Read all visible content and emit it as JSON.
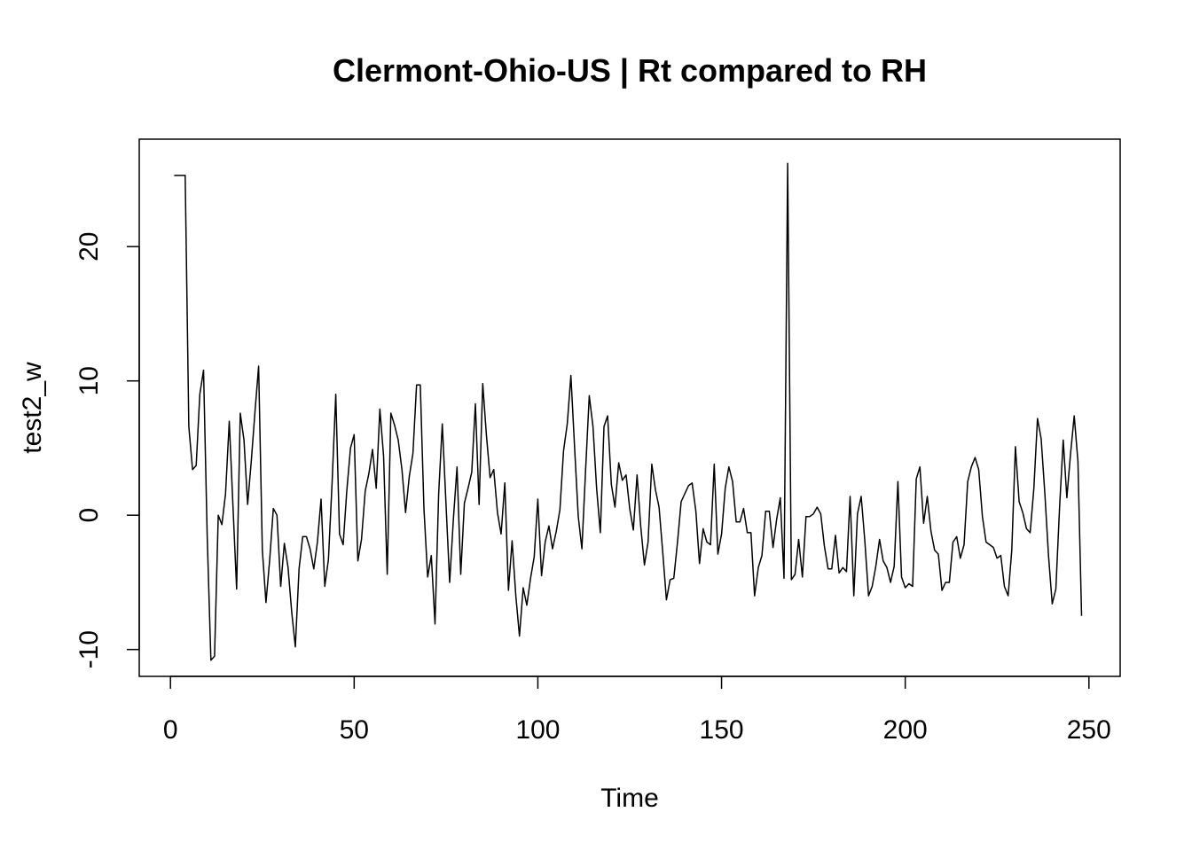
{
  "chart_data": {
    "type": "line",
    "title": "Clermont-Ohio-US | Rt compared to RH",
    "xlabel": "Time",
    "ylabel": "test2_w",
    "xlim": [
      -8.5,
      258.5
    ],
    "ylim": [
      -12,
      28
    ],
    "xticks": [
      0,
      50,
      100,
      150,
      200,
      250
    ],
    "yticks": [
      -10,
      0,
      10,
      20
    ],
    "grid": false,
    "legend": "none",
    "series": [
      {
        "color": "#000000",
        "x": [
          1,
          2,
          3,
          4,
          5,
          6,
          7,
          8,
          9,
          10,
          11,
          12,
          13,
          14,
          15,
          16,
          17,
          18,
          19,
          20,
          21,
          22,
          23,
          24,
          25,
          26,
          27,
          28,
          29,
          30,
          31,
          32,
          33,
          34,
          35,
          36,
          37,
          38,
          39,
          40,
          41,
          42,
          43,
          44,
          45,
          46,
          47,
          48,
          49,
          50,
          51,
          52,
          53,
          54,
          55,
          56,
          57,
          58,
          59,
          60,
          61,
          62,
          63,
          64,
          65,
          66,
          67,
          68,
          69,
          70,
          71,
          72,
          73,
          74,
          75,
          76,
          77,
          78,
          79,
          80,
          81,
          82,
          83,
          84,
          85,
          86,
          87,
          88,
          89,
          90,
          91,
          92,
          93,
          94,
          95,
          96,
          97,
          98,
          99,
          100,
          101,
          102,
          103,
          104,
          105,
          106,
          107,
          108,
          109,
          110,
          111,
          112,
          113,
          114,
          115,
          116,
          117,
          118,
          119,
          120,
          121,
          122,
          123,
          124,
          125,
          126,
          127,
          128,
          129,
          130,
          131,
          132,
          133,
          134,
          135,
          136,
          137,
          138,
          139,
          140,
          141,
          142,
          143,
          144,
          145,
          146,
          147,
          148,
          149,
          150,
          151,
          152,
          153,
          154,
          155,
          156,
          157,
          158,
          159,
          160,
          161,
          162,
          163,
          164,
          165,
          166,
          167,
          168,
          169,
          170,
          171,
          172,
          173,
          174,
          175,
          176,
          177,
          178,
          179,
          180,
          181,
          182,
          183,
          184,
          185,
          186,
          187,
          188,
          189,
          190,
          191,
          192,
          193,
          194,
          195,
          196,
          197,
          198,
          199,
          200,
          201,
          202,
          203,
          204,
          205,
          206,
          207,
          208,
          209,
          210,
          211,
          212,
          213,
          214,
          215,
          216,
          217,
          218,
          219,
          220,
          221,
          222,
          223,
          224,
          225,
          226,
          227,
          228,
          229,
          230,
          231,
          232,
          233,
          234,
          235,
          236,
          237,
          238,
          239,
          240,
          241,
          242,
          243,
          244,
          245,
          246,
          247,
          248
        ],
        "y": [
          25.3,
          25.3,
          25.3,
          25.3,
          6.6,
          3.4,
          3.7,
          9.0,
          10.8,
          -1.5,
          -10.8,
          -10.5,
          0.0,
          -0.7,
          1.6,
          7.0,
          0.8,
          -5.5,
          7.6,
          5.6,
          0.8,
          4.0,
          7.7,
          11.1,
          -2.6,
          -6.5,
          -3.3,
          0.5,
          0.0,
          -5.3,
          -2.1,
          -3.9,
          -7.2,
          -9.8,
          -4.0,
          -1.6,
          -1.6,
          -2.5,
          -4.0,
          -2.0,
          1.2,
          -5.3,
          -3.3,
          2.5,
          9.0,
          -1.4,
          -2.2,
          1.8,
          5.0,
          6.0,
          -3.4,
          -1.8,
          1.8,
          3.1,
          4.9,
          2.0,
          7.9,
          4.4,
          -4.4,
          7.6,
          6.7,
          5.6,
          3.4,
          0.2,
          2.9,
          4.6,
          9.7,
          9.7,
          0.5,
          -4.6,
          -3.0,
          -8.1,
          1.6,
          6.8,
          0.8,
          -5.0,
          -0.3,
          3.6,
          -4.4,
          0.9,
          2.0,
          3.2,
          8.3,
          0.8,
          9.8,
          6.0,
          2.8,
          3.4,
          0.2,
          -1.4,
          2.4,
          -5.6,
          -1.9,
          -6.0,
          -9.0,
          -5.4,
          -6.7,
          -4.7,
          -3.1,
          1.2,
          -4.5,
          -2.0,
          -0.8,
          -2.5,
          -1.2,
          0.4,
          4.8,
          6.8,
          10.4,
          5.0,
          -0.1,
          -2.5,
          3.4,
          8.9,
          6.6,
          2.0,
          -1.3,
          6.6,
          7.4,
          2.3,
          0.6,
          3.9,
          2.6,
          3.0,
          0.5,
          -1.1,
          3.0,
          -0.8,
          -3.7,
          -2.0,
          3.8,
          1.9,
          0.6,
          -2.8,
          -6.3,
          -4.8,
          -4.7,
          -2.0,
          1.0,
          1.6,
          2.2,
          2.4,
          0.3,
          -3.6,
          -1.0,
          -2.0,
          -2.2,
          3.8,
          -2.9,
          -1.4,
          2.0,
          3.6,
          2.5,
          -0.5,
          -0.5,
          0.5,
          -1.3,
          -1.3,
          -6.0,
          -3.9,
          -3.0,
          0.3,
          0.3,
          -2.4,
          -0.3,
          1.3,
          -4.7,
          26.2,
          -4.8,
          -4.4,
          -1.8,
          -4.6,
          -0.1,
          -0.1,
          0.1,
          0.6,
          0.1,
          -2.3,
          -4.0,
          -4.0,
          -1.5,
          -4.3,
          -3.9,
          -4.2,
          1.4,
          -6.0,
          0.1,
          1.4,
          -1.9,
          -6.0,
          -5.3,
          -3.8,
          -1.8,
          -3.4,
          -3.9,
          -5.0,
          -3.8,
          2.5,
          -4.6,
          -5.4,
          -5.1,
          -5.3,
          2.7,
          3.6,
          -0.6,
          1.4,
          -1.2,
          -2.6,
          -2.9,
          -5.6,
          -5.0,
          -5.0,
          -2.0,
          -1.6,
          -3.2,
          -2.2,
          2.5,
          3.6,
          4.3,
          3.4,
          -0.1,
          -2.0,
          -2.2,
          -2.4,
          -3.2,
          -3.0,
          -5.3,
          -6.0,
          -2.6,
          5.1,
          1.0,
          0.2,
          -1.0,
          -1.3,
          2.0,
          7.2,
          5.7,
          1.6,
          -3.0,
          -6.6,
          -5.5,
          0.6,
          5.6,
          1.3,
          4.6,
          7.4,
          4.0,
          -7.5
        ]
      }
    ]
  }
}
